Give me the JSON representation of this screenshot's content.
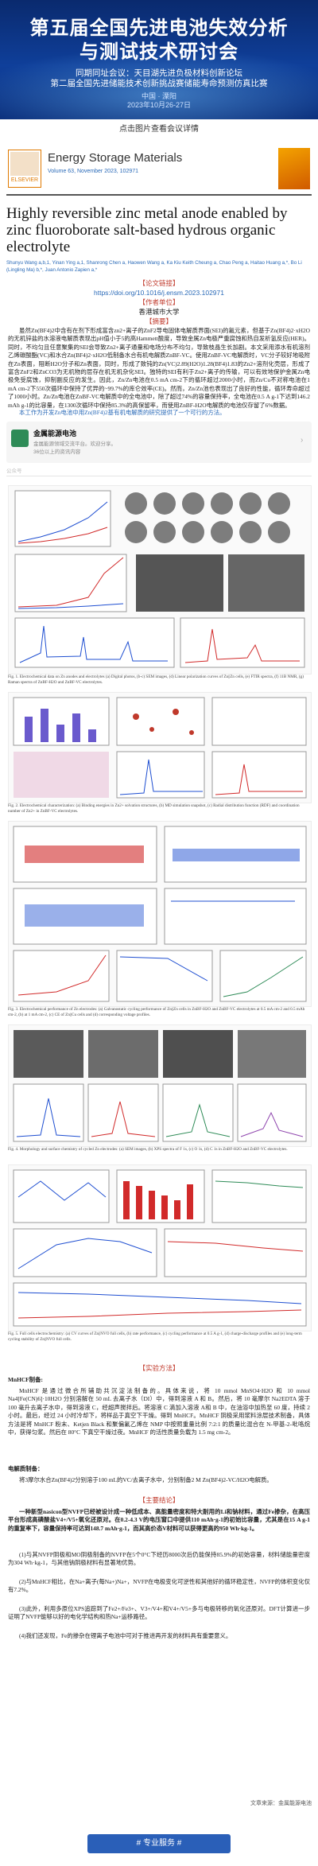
{
  "banner": {
    "title_line1": "第五届全国先进电池失效分析",
    "title_line2": "与测试技术研讨会",
    "sub_line1": "同期同址会议：天目湖先进负极材料创新论坛",
    "sub_line2": "第二届全国先进储能技术创新挑战赛储能寿命预测仿真比赛",
    "location": "中国 · 溧阳",
    "date": "2023年10月26-27日"
  },
  "banner_caption": "点击图片查看会议详情",
  "article": {
    "publisher": "ELSEVIER",
    "journal": "Energy Storage Materials",
    "volume": "Volume 63, November 2023, 102971",
    "title": "Highly reversible zinc metal anode enabled by zinc fluoroborate salt-based hydrous organic electrolyte",
    "authors": "Shunyu Wang a,b,1, Yinan Ying a,1, Shanrong Chen a, Haowen Wang a, Ka Kiu Keith Cheung a, Chao Peng a, Haitao Huang a,*, Bo Li (Lingling Ma) b,*, Juan Antonio Zapien a,*"
  },
  "sections": {
    "link_header": "【论文链接】",
    "link_url": "https://doi.org/10.1016/j.ensm.2023.102971",
    "authors_header": "【作者单位】",
    "affiliation": "香港城市大学",
    "abstract_header": "【摘要】",
    "abstract": "虽然Zn(BF4)2中含有在剂下形成富含zn2+离子的ZnF2导电固体电解质界面(SEI)的氟元素，但基于Zn(BF4)2·xH2O的无机锌盐的水溶液电解质表现出pH值小于5的高Hammett酸度，导致金属Zn电极严重腐蚀和热自发析氢反应(HER)。同时，不均匀且任意聚集的SEI会导致Zn2+离子通量和电场分布不均匀，导致枝晶生长加剧。本文采用添水有机溶剂乙烯碳酸酯(VC)和水合Zn(BF4)2·xH2O低制备水合有机电解质ZnBF-VC。使用ZnBF-VC电解质时，VC分子较好地吸附在Zn表面，阻断H2O分子和Zn表面，同时，形成了致钝的Zn(VC)2.89(H2O)1.28(BF4)1.83的Zn2+溶剂化壳层，形成了富含ZnF2和ZnCO3为无机物的层存在机无机杂化SEI。独特的SEI有利于Zn2+离子的传输，可以有效地保护金属Zn电极免受腐蚀，抑制副反应的发生。因此，Zn/Zn电池在0.5 mA cm-2下的循环超过2000小时，而Zn/Cu不对称电池在1 mA cm-2下550次循环中保持了优异的~99.7%的库仑效率(CE)。然而，Zn/Zn池也表现出了良好的性能，循环寿命超过了1000小时。Zn/Zn电池在ZnBF-VC电解质中的全电池中，除了超过74%的容量保持率，全电池在0.5 A g-1下达到146.2 mAh g-1的比容量，在1300次循环中保持85.3%的高保留率，而使用ZnBF-H2O电解质的电池仅存留了6%数据。",
    "abstract_end": "本工作为开发Zn电池中用Zn(BF4)2基有机电解质的研究提供了一个可行的方法。",
    "card_name": "金属能源电池",
    "card_desc": "金属能源领域交流平台。欢迎分享。",
    "card_count": "36位以上的资讯内容",
    "official": "公众号",
    "fig1_caption": "Fig. 1. Electrochemical data on Zn anodes and electrolytes (a) Digital photos, (b-c) SEM images, (d) Linear polarization curves of Zn||Zn cells, (e) FTIR spectra, (f) 11B NMR, (g) Raman spectra of ZnBF-H2O and ZnBF-VC electrolytes.",
    "fig2_caption": "Fig. 2. Electrochemical characterization: (a) Binding energies in Zn2+ solvation structures, (b) MD simulation snapshot, (c) Radial distribution function (RDF) and coordination number of Zn2+ in ZnBF-VC electrolytes.",
    "fig3_caption": "Fig. 3. Electrochemical performance of Zn electrodes: (a) Galvanostatic cycling performance of Zn||Zn cells in ZnBF-H2O and ZnBF-VC electrolytes at 0.5 mA cm-2 and 0.5 mAh cm-2, (b) at 1 mA cm-2, (c) CE of Zn||Cu cells and (d) corresponding voltage profiles.",
    "fig4_caption": "Fig. 4. Morphology and surface chemistry of cycled Zn electrodes: (a) SEM images, (b) XPS spectra of F 1s, (c) O 1s, (d) C 1s in ZnBF-H2O and ZnBF-VC electrolytes.",
    "fig5_caption": "Fig. 5. Full cells electrochemistry: (a) CV curves of Zn||NVO full cells, (b) rate performance, (c) cycling performance at 0.5 A g-1, (d) charge-discharge profiles and (e) long-term cycling stability of Zn||NVO full cells.",
    "exp_header": "【实验方法】",
    "exp_title": "MnHCF制备:",
    "exp_body": "MnHCF 是通过微合所辅助共沉淀法制备的。具体来说，将 10 mmol MnSO4·H2O 和 10 mmol Na4[Fe(CN)6]·10H2O 分别溶解在 50 mL 去离子水（DI）中，得到溶液 A 和 B。然后，将 10 毫摩尔 Na2EDTA 溶于 100 毫升去离子水中，得到溶液 C，经超声搅拌后。将溶液 C 滴加入溶液 A和 B 中，在油浴中加热至 60 度，持续 2 小时。最后，经过 24 小时冷却下，将样品于真空下干燥。得到 MnHCF。MnHCF 阴极采用浆料涂层技术制备，具体方法是将 MnHCF 粉末、Ketjen Black 和聚偏氟乙烯在 NMP 中按照重量比例 7:2:1 的质量比混合在 N-甲基-2-吡咯烷中，获得匀浆。然后在 80°C 下真空干燥过夜。MnHCF 的活性质量负载为 1.5 mg cm-2。",
    "exp_body2": "电解质制备：",
    "exp_body3": "将3摩尔水合Zn(BF4)2分别溶于100 mL的VC/去离子水中，分别制备2 M Zn(BF4)2-VC/H2O电解质。",
    "innov_header": "【主要结论】",
    "innov_intro": "一种新型nasicon型NVFP已经被设计成一种低成本、高能量密度和特大耐用的Li和钠材料，通过Fe掺杂，在高压平台形成高磷酸盐V4+/V5+氧化还原对。在0.2-4.3 V的电压窗口中提供110 mAh·g-1的初始比容量，尤其是在15 A g-1的重复率下，容量保持率可达到148.7 mAh·g-1，而其高价态V材料可以获得更高的950 Wh·kg-1。",
    "innov_items": [
      "(1)与其NVFP阴极和MO阴极制备的NVFP在5个0°C下经历8000次后仍能保持85.9%的初始容量，材料储能量密度为304 Wh·kg-1，与其他钠阴极材料有显著地优势。",
      "(2)与MnHCF相比，在Na+离子(每Na+)Na+，NVFP在电极变化可逆性和其他好的循环稳定性，NVFP的体积变化仅有7.2%。",
      "(3)此外，利用多原位XPS追踪到了Fe2+/Fe3+、V3+/V4+和V4+/V5+多与电极转移的氧化还原对。DFT计算进一步证明了NVFP能够以好的电化学结构和热Na+运移路径。",
      "(4)我们还发现，Fe的掺杂在锂离子电池中可对于推进再开发的材料具有重要意义。"
    ],
    "author_credit": "文章来源：金属能源电池",
    "tag": "# 专业服务 #"
  }
}
